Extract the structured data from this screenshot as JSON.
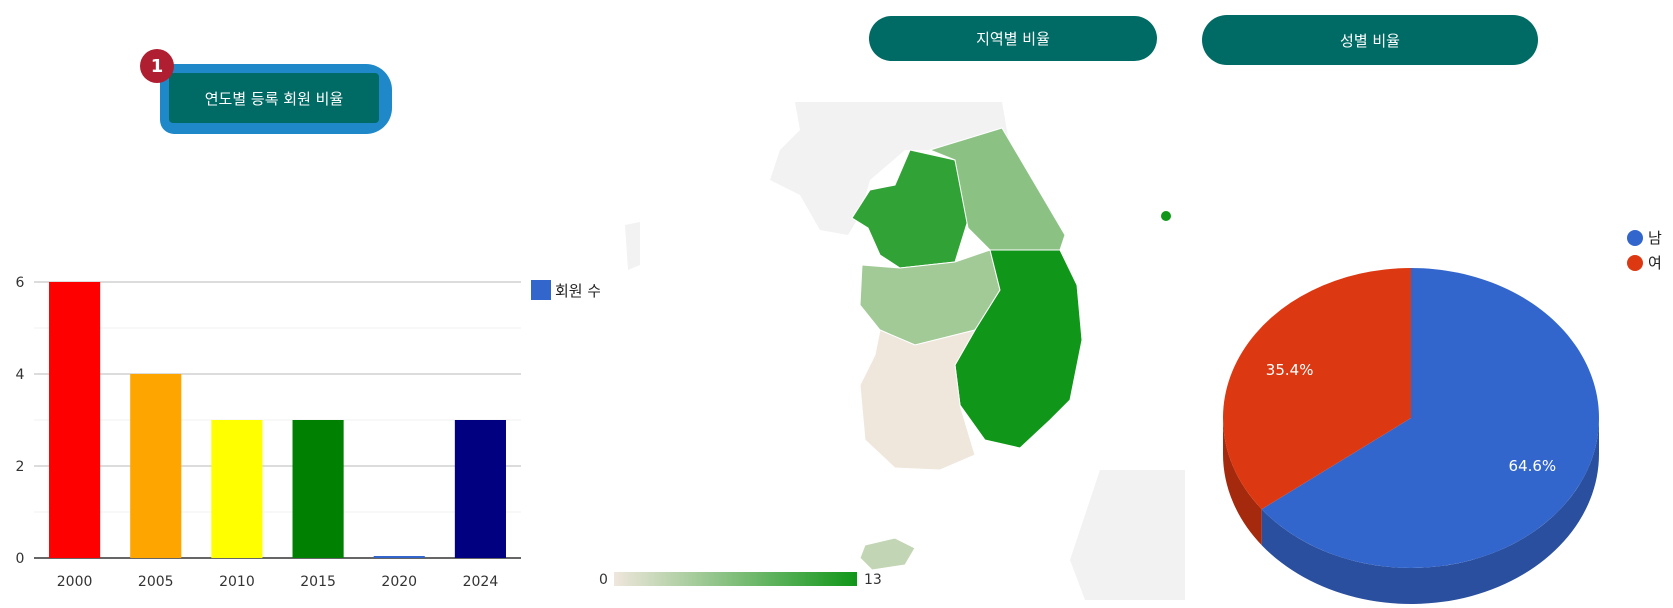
{
  "buttons": {
    "yearly": "연도별 등록 회원 비율",
    "region": "지역별 비율",
    "gender": "성별 비율",
    "badge": "1"
  },
  "chart_data": [
    {
      "type": "bar",
      "categories": [
        "2000",
        "2005",
        "2010",
        "2015",
        "2020",
        "2024"
      ],
      "series": [
        {
          "name": "회원 수",
          "values": [
            6,
            4,
            3,
            3,
            0,
            3
          ]
        }
      ],
      "bar_colors": [
        "#ff0000",
        "#ffa500",
        "#ffff00",
        "#008000",
        "#3366cc",
        "#000080"
      ],
      "legend_color": "#3366cc",
      "ylim": [
        0,
        6
      ],
      "yticks": [
        "0",
        "2",
        "4",
        "6"
      ],
      "legend": "right",
      "grid": true
    },
    {
      "type": "heatmap",
      "scale": {
        "min": "0",
        "max": "13",
        "min_color": "#efe6dc",
        "max_color": "#109618"
      },
      "regions": [
        {
          "name": "gyeonggi",
          "level": 0.85
        },
        {
          "name": "gangwon",
          "level": 0.45
        },
        {
          "name": "chungcheong",
          "level": 0.35
        },
        {
          "name": "gyeongsang",
          "level": 1.0
        },
        {
          "name": "jeolla",
          "level": 0.0
        },
        {
          "name": "jeju",
          "level": 0.2
        }
      ]
    },
    {
      "type": "pie",
      "legend": "top-right",
      "series": [
        {
          "name": "남",
          "value": 64.6,
          "label": "64.6%",
          "color": "#3366cc",
          "side_color": "#2a4f9e"
        },
        {
          "name": "여",
          "value": 35.4,
          "label": "35.4%",
          "color": "#dc3912",
          "side_color": "#a5290c"
        }
      ]
    }
  ]
}
